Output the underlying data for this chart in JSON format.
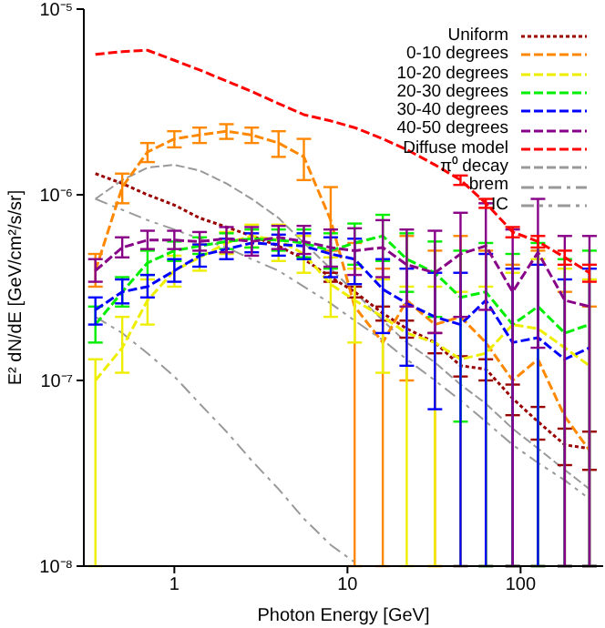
{
  "chart_data": {
    "type": "line",
    "xlabel": "Photon Energy [GeV]",
    "ylabel": "E² dN/dE [GeV/cm²/s/sr]",
    "log": "xy",
    "legend": "top right",
    "xlim": [
      0.3,
      300
    ],
    "xticks": [
      1,
      10,
      100
    ],
    "ylim": [
      1e-08,
      1e-05
    ],
    "yticks": [
      {
        "value": 1e-08,
        "label": "10⁻⁸"
      },
      {
        "value": 1e-07,
        "label": "10⁻⁷"
      },
      {
        "value": 1e-06,
        "label": "10⁻⁶"
      },
      {
        "value": 1e-05,
        "label": "10⁻⁵"
      }
    ],
    "x": [
      0.35,
      0.5,
      0.7,
      1,
      1.4,
      2,
      2.8,
      4,
      5.6,
      8,
      11,
      16,
      22,
      32,
      45,
      63,
      90,
      126,
      180,
      250
    ],
    "series": [
      {
        "name": "Uniform",
        "color": "#990000",
        "line_style": "dotted",
        "values": [
          1.3e-06,
          1.15e-06,
          1e-06,
          8.8e-07,
          7.5e-07,
          6.7e-07,
          6e-07,
          5.3e-07,
          4.5e-07,
          3.6e-07,
          3e-07,
          2.3e-07,
          1.9e-07,
          1.6e-07,
          1.2e-07,
          1.15e-07,
          8e-08,
          6e-08,
          4.5e-08,
          4.3e-08
        ],
        "errors": [
          null,
          null,
          null,
          null,
          null,
          null,
          null,
          null,
          null,
          [
            3.4e-07,
            3.8e-07
          ],
          [
            2.8e-07,
            3.2e-07
          ],
          [
            2.1e-07,
            2.5e-07
          ],
          [
            1.7e-07,
            2.1e-07
          ],
          [
            1.4e-07,
            1.8e-07
          ],
          [
            1.05e-07,
            1.35e-07
          ],
          [
            1e-07,
            1.3e-07
          ],
          [
            6.5e-08,
            9.5e-08
          ],
          [
            4.8e-08,
            7.2e-08
          ],
          [
            3.5e-08,
            5.5e-08
          ],
          [
            3.3e-08,
            5.3e-08
          ]
        ]
      },
      {
        "name": "0-10 degrees",
        "color": "#ff8800",
        "line_style": "dashed",
        "values": [
          3.9e-07,
          1.1e-06,
          1.7e-06,
          2e-06,
          2.1e-06,
          2.2e-06,
          2.1e-06,
          1.9e-06,
          1.6e-06,
          7.3e-07,
          2.5e-07,
          1.6e-07,
          2.7e-07,
          2e-07,
          2.2e-07,
          1.6e-07,
          1e-07,
          1.3e-07,
          6.4e-08,
          4.2e-08
        ],
        "errors": [
          [
            3.2e-07,
            4.8e-07
          ],
          [
            9e-07,
            1.3e-06
          ],
          [
            1.5e-06,
            1.9e-06
          ],
          [
            1.8e-06,
            2.2e-06
          ],
          [
            1.9e-06,
            2.3e-06
          ],
          [
            2e-06,
            2.4e-06
          ],
          [
            1.9e-06,
            2.3e-06
          ],
          [
            1.6e-06,
            2.2e-06
          ],
          [
            1.2e-06,
            2e-06
          ],
          [
            5e-07,
            1.1e-06
          ],
          [
            1e-08,
            5.5e-07
          ],
          [
            1e-08,
            4e-07
          ],
          [
            1e-07,
            6e-07
          ],
          [
            1e-08,
            5e-07
          ],
          [
            1e-08,
            6e-07
          ],
          [
            1e-08,
            5e-07
          ],
          [
            1e-08,
            4.2e-07
          ],
          [
            1e-08,
            5e-07
          ],
          [
            1e-08,
            3e-07
          ],
          [
            1e-08,
            2.5e-07
          ]
        ]
      },
      {
        "name": "10-20 degrees",
        "color": "#eeee00",
        "line_style": "dashed",
        "values": [
          1e-07,
          1.5e-07,
          2.7e-07,
          3.9e-07,
          4.6e-07,
          5.5e-07,
          6e-07,
          5.7e-07,
          4.8e-07,
          3.3e-07,
          2.7e-07,
          2.2e-07,
          1.8e-07,
          1.6e-07,
          1.3e-07,
          1.4e-07,
          2e-07,
          1.9e-07,
          1.5e-07,
          1.2e-07
        ],
        "errors": [
          [
            1e-08,
            1.3e-07
          ],
          [
            1.1e-07,
            2.2e-07
          ],
          [
            2e-07,
            3.5e-07
          ],
          [
            3.2e-07,
            4.7e-07
          ],
          [
            3.9e-07,
            5.4e-07
          ],
          [
            4.8e-07,
            6.3e-07
          ],
          [
            5.2e-07,
            6.9e-07
          ],
          [
            4.4e-07,
            6.9e-07
          ],
          [
            3.8e-07,
            6e-07
          ],
          [
            2.2e-07,
            4.6e-07
          ],
          [
            1.6e-07,
            4e-07
          ],
          [
            1.1e-07,
            3.5e-07
          ],
          [
            1e-08,
            3.2e-07
          ],
          [
            1e-08,
            3.2e-07
          ],
          [
            1e-08,
            3e-07
          ],
          [
            1e-08,
            3.2e-07
          ],
          [
            1e-08,
            3.8e-07
          ],
          [
            1e-08,
            4.5e-07
          ],
          [
            1e-08,
            4e-07
          ],
          [
            1e-08,
            3.5e-07
          ]
        ]
      },
      {
        "name": "20-30 degrees",
        "color": "#00ee00",
        "line_style": "dashed",
        "values": [
          2e-07,
          3e-07,
          4.3e-07,
          5e-07,
          5.3e-07,
          5.6e-07,
          5.8e-07,
          5.7e-07,
          5.5e-07,
          5e-07,
          5.5e-07,
          6e-07,
          4.5e-07,
          3.8e-07,
          2.8e-07,
          3e-07,
          2e-07,
          2.5e-07,
          1.8e-07,
          2e-07
        ],
        "errors": [
          [
            1.6e-07,
            2.5e-07
          ],
          [
            2.5e-07,
            3.6e-07
          ],
          [
            3.7e-07,
            5e-07
          ],
          [
            4.4e-07,
            5.6e-07
          ],
          [
            4.8e-07,
            5.9e-07
          ],
          [
            5.1e-07,
            6.2e-07
          ],
          [
            5.2e-07,
            6.5e-07
          ],
          [
            5e-07,
            6.5e-07
          ],
          [
            4.6e-07,
            6.5e-07
          ],
          [
            4e-07,
            6.2e-07
          ],
          [
            4.2e-07,
            7e-07
          ],
          [
            4.4e-07,
            7.8e-07
          ],
          [
            3e-07,
            6.2e-07
          ],
          [
            2.2e-07,
            5.6e-07
          ],
          [
            6e-08,
            5e-07
          ],
          [
            1e-08,
            5.5e-07
          ],
          [
            1e-08,
            4.8e-07
          ],
          [
            1e-08,
            5.5e-07
          ],
          [
            1e-08,
            4.5e-07
          ],
          [
            1e-08,
            5e-07
          ]
        ]
      },
      {
        "name": "30-40 degrees",
        "color": "#0000ff",
        "line_style": "dashed",
        "values": [
          2.4e-07,
          3e-07,
          3.2e-07,
          3.9e-07,
          4.7e-07,
          5.1e-07,
          5.5e-07,
          5.4e-07,
          5.3e-07,
          4.8e-07,
          4.5e-07,
          3.1e-07,
          2.6e-07,
          2.2e-07,
          2e-07,
          2.7e-07,
          1.6e-07,
          1.7e-07,
          1.3e-07,
          1.5e-07
        ],
        "errors": [
          [
            2e-07,
            2.8e-07
          ],
          [
            2.6e-07,
            3.5e-07
          ],
          [
            2.8e-07,
            3.7e-07
          ],
          [
            3.4e-07,
            4.5e-07
          ],
          [
            4.1e-07,
            5.4e-07
          ],
          [
            4.5e-07,
            5.8e-07
          ],
          [
            4.9e-07,
            6.2e-07
          ],
          [
            4.7e-07,
            6.1e-07
          ],
          [
            4.5e-07,
            6.2e-07
          ],
          [
            3.6e-07,
            5.9e-07
          ],
          [
            3.3e-07,
            5.8e-07
          ],
          [
            1.8e-07,
            4.5e-07
          ],
          [
            1.2e-07,
            4e-07
          ],
          [
            7e-08,
            3.8e-07
          ],
          [
            1e-08,
            3.8e-07
          ],
          [
            1e-08,
            4.8e-07
          ],
          [
            1e-08,
            4e-07
          ],
          [
            1e-08,
            4.2e-07
          ],
          [
            1e-08,
            3.5e-07
          ],
          [
            1e-08,
            4e-07
          ]
        ]
      },
      {
        "name": "40-50 degrees",
        "color": "#880088",
        "line_style": "dashed",
        "values": [
          3.9e-07,
          5.2e-07,
          5.7e-07,
          5.7e-07,
          5.6e-07,
          5.8e-07,
          5.6e-07,
          5.9e-07,
          5.6e-07,
          5.2e-07,
          5e-07,
          5.2e-07,
          4.2e-07,
          3.8e-07,
          4.8e-07,
          5.3e-07,
          3e-07,
          4.9e-07,
          2.7e-07,
          2.5e-07
        ],
        "errors": [
          [
            3.4e-07,
            4.5e-07
          ],
          [
            4.6e-07,
            5.9e-07
          ],
          [
            5.1e-07,
            6.4e-07
          ],
          [
            5.1e-07,
            6.4e-07
          ],
          [
            5e-07,
            6.3e-07
          ],
          [
            4.9e-07,
            6.7e-07
          ],
          [
            4.7e-07,
            6.7e-07
          ],
          [
            5.1e-07,
            6.8e-07
          ],
          [
            4.8e-07,
            6.8e-07
          ],
          [
            4.1e-07,
            6.5e-07
          ],
          [
            3.7e-07,
            6.6e-07
          ],
          [
            3.6e-07,
            7.3e-07
          ],
          [
            2.5e-07,
            6.5e-07
          ],
          [
            1.8e-07,
            6.4e-07
          ],
          [
            2.2e-07,
            8e-07
          ],
          [
            2.4e-07,
            9e-07
          ],
          [
            1e-08,
            6.5e-07
          ],
          [
            1.5e-07,
            9.5e-07
          ],
          [
            1e-08,
            6e-07
          ],
          [
            1e-08,
            6e-07
          ]
        ]
      },
      {
        "name": "Diffuse model",
        "color": "#ff0000",
        "line_style": "dashed",
        "values": [
          5.7e-06,
          5.9e-06,
          6e-06,
          5.3e-06,
          4.7e-06,
          4.1e-06,
          3.6e-06,
          3.1e-06,
          2.7e-06,
          2.5e-06,
          2.3e-06,
          2e-06,
          1.75e-06,
          1.45e-06,
          1.2e-06,
          9e-07,
          6.3e-07,
          5.6e-07,
          4.6e-07,
          3.8e-07
        ],
        "errors": [
          null,
          null,
          null,
          null,
          null,
          null,
          null,
          null,
          null,
          null,
          null,
          null,
          null,
          null,
          [
            1.13e-06,
            1.27e-06
          ],
          [
            8.5e-07,
            9.5e-07
          ],
          [
            5.9e-07,
            6.7e-07
          ],
          [
            5.2e-07,
            6e-07
          ],
          [
            4.2e-07,
            5e-07
          ],
          [
            3.4e-07,
            4.2e-07
          ]
        ]
      },
      {
        "name": "π⁰ decay",
        "color": "#999999",
        "line_style": "dashed",
        "values": [
          9.5e-07,
          1.2e-06,
          1.4e-06,
          1.45e-06,
          1.35e-06,
          1.15e-06,
          9.5e-07,
          7.5e-07,
          5.5e-07,
          4e-07,
          3e-07,
          2.1e-07,
          1.6e-07,
          1.25e-07,
          9.5e-08,
          7.5e-08,
          5.5e-08,
          4.3e-08,
          3.3e-08,
          2.6e-08
        ]
      },
      {
        "name": "brem",
        "color": "#999999",
        "line_style": "dashdot",
        "values": [
          2.2e-07,
          1.8e-07,
          1.4e-07,
          1.05e-07,
          7.5e-08,
          5.3e-08,
          3.7e-08,
          2.6e-08,
          1.8e-08,
          1.3e-08,
          1.05e-08,
          null,
          null,
          null,
          null,
          null,
          null,
          null,
          null,
          null
        ]
      },
      {
        "name": "IC",
        "color": "#999999",
        "line_style": "dashdotdot",
        "values": [
          9.5e-07,
          8.3e-07,
          7.3e-07,
          6.5e-07,
          5.8e-07,
          5.2e-07,
          4.5e-07,
          3.9e-07,
          3.2e-07,
          2.6e-07,
          2.1e-07,
          1.65e-07,
          1.3e-07,
          1e-07,
          7.8e-08,
          6e-08,
          4.5e-08,
          3.6e-08,
          2.9e-08,
          2.3e-08
        ]
      }
    ]
  }
}
